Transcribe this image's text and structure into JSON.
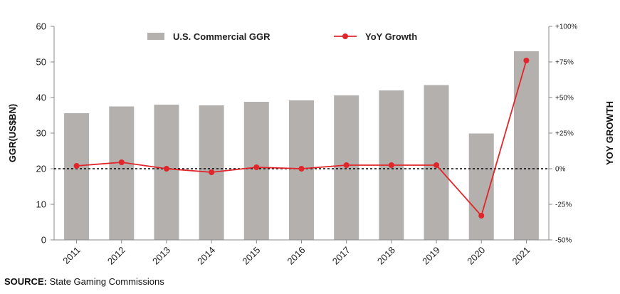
{
  "source": {
    "label": "SOURCE:",
    "text": "State Gaming Commissions"
  },
  "colors": {
    "bar": "#b3b0ae",
    "line": "#e0262b",
    "axis": "#888888",
    "zero_line": "#000000"
  },
  "chart_data": {
    "type": "bar",
    "categories": [
      "2011",
      "2012",
      "2013",
      "2014",
      "2015",
      "2016",
      "2017",
      "2018",
      "2019",
      "2020",
      "2021"
    ],
    "series": [
      {
        "name": "U.S. Commercial GGR",
        "type": "bar",
        "axis": "left",
        "values": [
          35.6,
          37.5,
          38.0,
          37.8,
          38.8,
          39.2,
          40.6,
          42.0,
          43.5,
          29.9,
          53.0
        ]
      },
      {
        "name": "YoY Growth",
        "type": "line",
        "axis": "right",
        "values": [
          2.0,
          4.5,
          0.0,
          -2.5,
          1.0,
          0.0,
          2.5,
          2.5,
          2.5,
          -33.0,
          76.0
        ]
      }
    ],
    "ylabel": "GGR(US$BN)",
    "ylabel_right": "YOY GROWTH",
    "ylim": [
      0,
      60
    ],
    "yticks": [
      "0",
      "10",
      "20",
      "30",
      "40",
      "50",
      "60"
    ],
    "ylim_right": [
      -50,
      100
    ],
    "yticks_right": [
      "-50%",
      "-25%",
      "0%",
      "+25%",
      "+50%",
      "+75%",
      "+100%"
    ],
    "legend_position": "top",
    "grid": false
  }
}
